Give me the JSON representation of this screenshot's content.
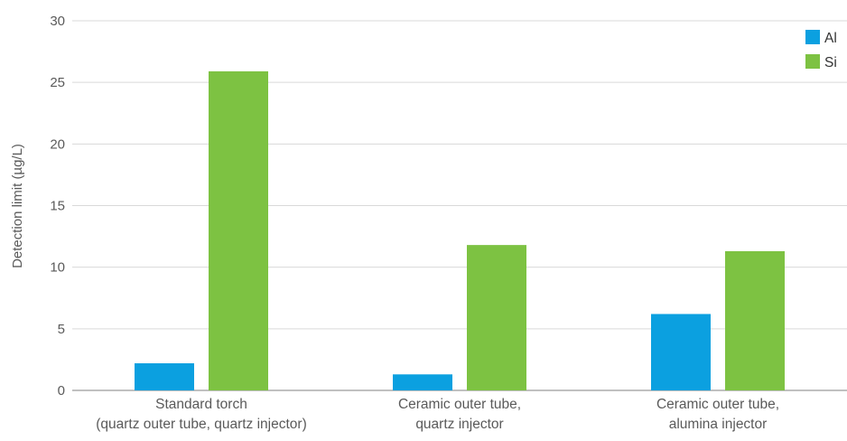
{
  "chart_data": {
    "type": "bar",
    "categories": [
      [
        "Standard torch",
        "(quartz outer tube, quartz injector)"
      ],
      [
        "Ceramic outer tube,",
        "quartz injector"
      ],
      [
        "Ceramic outer tube,",
        "alumina injector"
      ]
    ],
    "series": [
      {
        "name": "Al",
        "color": "#0ba0e0",
        "values": [
          2.2,
          1.3,
          6.2
        ]
      },
      {
        "name": "Si",
        "color": "#7dc242",
        "values": [
          25.9,
          11.8,
          11.3
        ]
      }
    ],
    "ylabel": "Detection limit (µg/L)",
    "xlabel": "",
    "ylim": [
      0,
      30
    ],
    "yticks": [
      0,
      5,
      10,
      15,
      20,
      25,
      30
    ],
    "grid": true,
    "legend_position": "top-right",
    "gridline_color": "#d9d9d9",
    "axis_color": "#9a9a9a"
  }
}
